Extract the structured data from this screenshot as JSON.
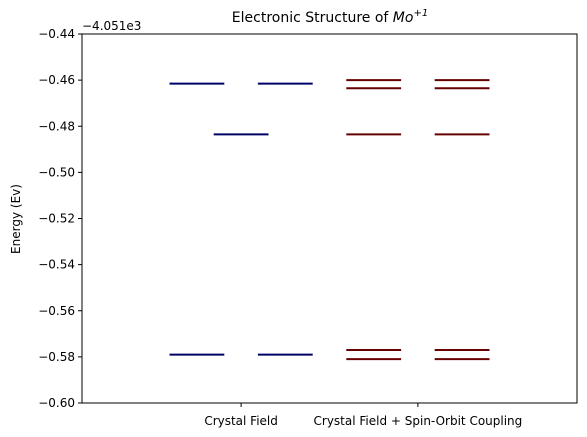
{
  "chart_data": {
    "type": "energy-level",
    "title_main": "Electronic Structure of ",
    "title_species": "Mo",
    "title_charge": "+1",
    "ylabel": "Energy (Ev)",
    "offset_text": "−4.051e3",
    "ylim": [
      -0.6,
      -0.44
    ],
    "yticks": [
      -0.44,
      -0.46,
      -0.48,
      -0.5,
      -0.52,
      -0.54,
      -0.56,
      -0.58,
      -0.6
    ],
    "ytick_labels": [
      "−0.44",
      "−0.46",
      "−0.48",
      "−0.50",
      "−0.52",
      "−0.54",
      "−0.56",
      "−0.58",
      "−0.60"
    ],
    "categories": [
      "Crystal Field",
      "Crystal Field + Spin-Orbit Coupling"
    ],
    "grid": false,
    "series": [
      {
        "color": "#000066",
        "levels": [
          {
            "energy": -0.4615,
            "offsets": [
              -0.25,
              0.25
            ]
          },
          {
            "energy": -0.4835,
            "offsets": [
              0
            ]
          },
          {
            "energy": -0.579,
            "offsets": [
              -0.25,
              0.25
            ]
          }
        ]
      },
      {
        "color": "#660000",
        "levels": [
          {
            "energy": -0.46,
            "offsets": [
              -0.25,
              0.25
            ]
          },
          {
            "energy": -0.4635,
            "offsets": [
              -0.25,
              0.25
            ]
          },
          {
            "energy": -0.4835,
            "offsets": [
              -0.25,
              0.25
            ]
          },
          {
            "energy": -0.577,
            "offsets": [
              -0.25,
              0.25
            ]
          },
          {
            "energy": -0.581,
            "offsets": [
              -0.25,
              0.25
            ]
          }
        ]
      }
    ]
  }
}
